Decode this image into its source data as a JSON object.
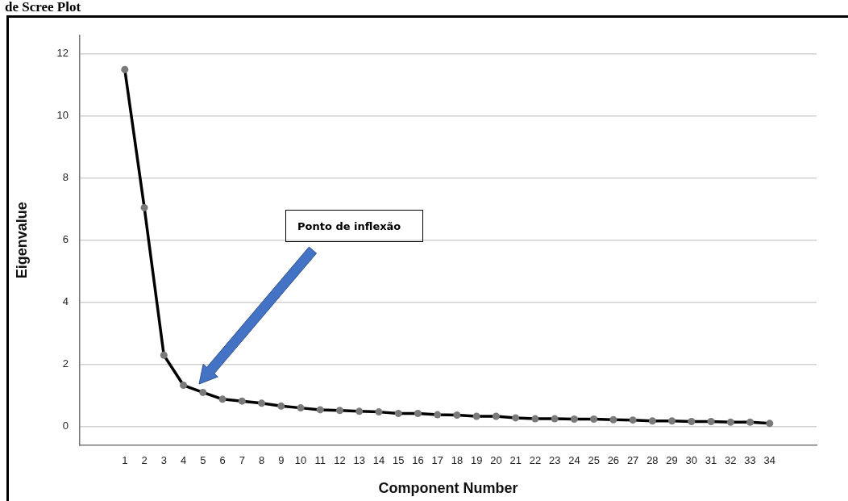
{
  "chart_data": {
    "type": "line",
    "title": "de Scree Plot",
    "xlabel": "Component Number",
    "ylabel": "Eigenvalue",
    "x": [
      1,
      2,
      3,
      4,
      5,
      6,
      7,
      8,
      9,
      10,
      11,
      12,
      13,
      14,
      15,
      16,
      17,
      18,
      19,
      20,
      21,
      22,
      23,
      24,
      25,
      26,
      27,
      28,
      29,
      30,
      31,
      32,
      33,
      34
    ],
    "series": [
      {
        "color": "#000000",
        "values": [
          11.5,
          7.05,
          2.3,
          1.33,
          1.1,
          0.88,
          0.82,
          0.75,
          0.66,
          0.6,
          0.54,
          0.52,
          0.49,
          0.47,
          0.42,
          0.42,
          0.38,
          0.37,
          0.33,
          0.33,
          0.28,
          0.25,
          0.25,
          0.24,
          0.24,
          0.22,
          0.21,
          0.18,
          0.18,
          0.16,
          0.16,
          0.14,
          0.14,
          0.1
        ]
      }
    ],
    "xlim": [
      -1.3,
      36.4
    ],
    "xticks": [
      1,
      2,
      3,
      4,
      5,
      6,
      7,
      8,
      9,
      10,
      11,
      12,
      13,
      14,
      15,
      16,
      17,
      18,
      19,
      20,
      21,
      22,
      23,
      24,
      25,
      26,
      27,
      28,
      29,
      30,
      31,
      32,
      33,
      34
    ],
    "ylim": [
      -0.6,
      12.6
    ],
    "yticks": [
      0,
      2,
      4,
      6,
      8,
      10,
      12
    ],
    "grid": "y",
    "marker": "circle",
    "line_style": "solid",
    "annotations": [
      "Ponto de inflexão"
    ]
  }
}
